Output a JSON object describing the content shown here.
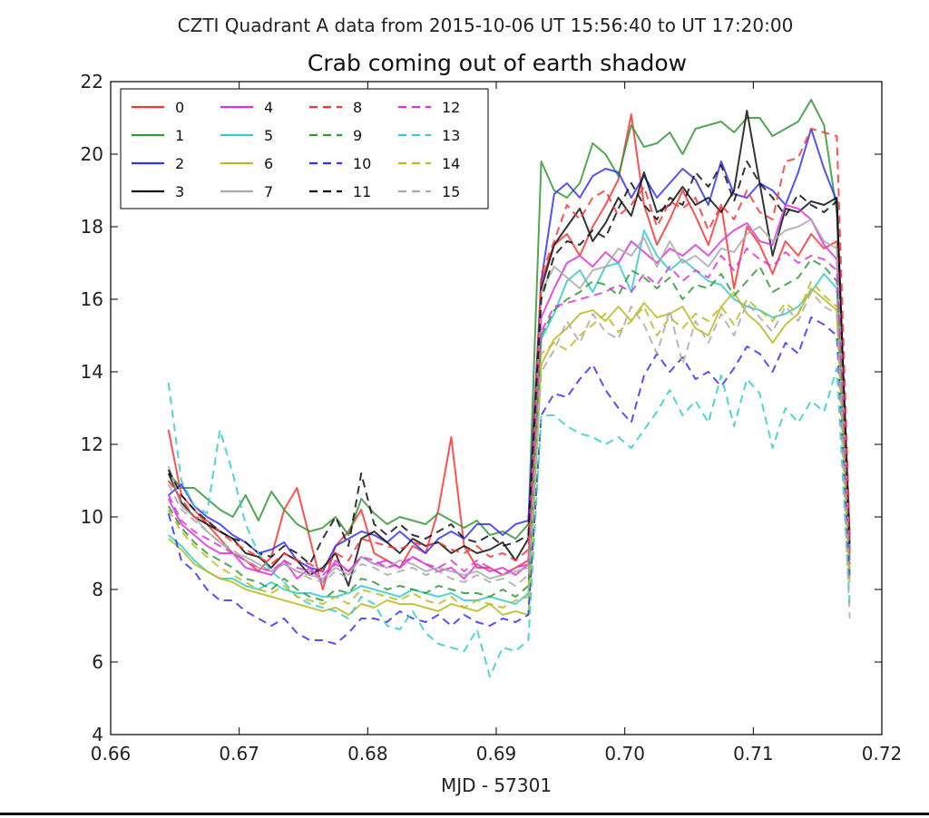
{
  "chart_data": {
    "type": "line",
    "suptitle": "CZTI Quadrant A data from 2015-10-06 UT 15:56:40 to UT 17:20:00",
    "title": "Crab coming out of earth shadow",
    "xlabel": "MJD - 57301",
    "ylabel": "",
    "xlim": [
      0.66,
      0.72
    ],
    "ylim": [
      4,
      22
    ],
    "xticks": [
      "0.66",
      "0.67",
      "0.68",
      "0.69",
      "0.70",
      "0.71",
      "0.72"
    ],
    "yticks": [
      "4",
      "6",
      "8",
      "10",
      "12",
      "14",
      "16",
      "18",
      "20",
      "22"
    ],
    "grid": false,
    "legend": {
      "placement": "top-left",
      "columns": 4
    },
    "x": [
      0.6645,
      0.6655,
      0.6665,
      0.6675,
      0.6685,
      0.6695,
      0.6705,
      0.6715,
      0.6725,
      0.6735,
      0.6745,
      0.6755,
      0.6765,
      0.6775,
      0.6785,
      0.6795,
      0.6805,
      0.6815,
      0.6825,
      0.6835,
      0.6845,
      0.6855,
      0.6865,
      0.6875,
      0.6885,
      0.6895,
      0.6905,
      0.6915,
      0.6925,
      0.6935,
      0.6945,
      0.6955,
      0.6965,
      0.6975,
      0.6985,
      0.6995,
      0.7005,
      0.7015,
      0.7025,
      0.7035,
      0.7045,
      0.7055,
      0.7065,
      0.7075,
      0.7085,
      0.7095,
      0.7105,
      0.7115,
      0.7125,
      0.7135,
      0.7145,
      0.7155,
      0.7165,
      0.7175
    ],
    "series": [
      {
        "name": "0",
        "color": "#ff3333",
        "style": "solid",
        "values": [
          12.4,
          10.6,
          10.2,
          9.8,
          9.4,
          9.0,
          8.8,
          8.5,
          8.9,
          10.2,
          10.8,
          9.4,
          8.0,
          9.2,
          9.6,
          10.2,
          9.0,
          8.8,
          8.6,
          9.2,
          9.0,
          10.2,
          12.2,
          9.2,
          8.6,
          8.6,
          8.4,
          8.6,
          8.8,
          16.5,
          17.5,
          17.8,
          17.2,
          18.0,
          18.6,
          19.3,
          21.1,
          18.6,
          17.5,
          18.2,
          19.0,
          18.3,
          17.5,
          18.6,
          16.3,
          18.0,
          17.5,
          16.7,
          17.6,
          17.2,
          17.8,
          17.4,
          17.6,
          8.5
        ]
      },
      {
        "name": "1",
        "color": "#339933",
        "style": "solid",
        "values": [
          11.2,
          10.8,
          10.8,
          10.5,
          10.2,
          10.0,
          10.6,
          9.9,
          10.7,
          10.2,
          9.8,
          9.6,
          9.7,
          10.0,
          9.5,
          10.5,
          10.1,
          9.8,
          10.0,
          9.9,
          9.8,
          10.1,
          9.9,
          9.7,
          9.9,
          9.5,
          9.6,
          9.4,
          9.8,
          19.8,
          19.0,
          18.8,
          19.2,
          20.3,
          20.0,
          19.4,
          20.8,
          20.2,
          20.3,
          20.6,
          20.0,
          20.7,
          20.8,
          20.9,
          20.6,
          21.0,
          21.0,
          20.5,
          20.7,
          20.9,
          21.5,
          20.8,
          18.4,
          9.5
        ]
      },
      {
        "name": "2",
        "color": "#3333ff",
        "style": "solid",
        "values": [
          10.6,
          10.9,
          10.3,
          10.0,
          9.8,
          9.5,
          9.3,
          9.0,
          9.1,
          9.3,
          8.8,
          8.6,
          8.5,
          9.2,
          9.4,
          9.6,
          9.5,
          9.3,
          9.6,
          9.3,
          9.0,
          9.4,
          9.6,
          9.4,
          9.8,
          9.8,
          9.5,
          9.8,
          9.9,
          16.5,
          18.9,
          19.2,
          18.8,
          19.4,
          19.6,
          19.5,
          18.8,
          19.4,
          18.8,
          19.2,
          19.6,
          19.3,
          18.6,
          19.8,
          18.9,
          18.8,
          19.2,
          19.0,
          18.6,
          19.5,
          20.7,
          19.6,
          18.7,
          9.2
        ]
      },
      {
        "name": "3",
        "color": "#111111",
        "style": "solid",
        "values": [
          11.2,
          10.4,
          10.0,
          9.8,
          9.6,
          9.4,
          9.0,
          8.9,
          8.6,
          9.0,
          8.8,
          8.4,
          8.6,
          9.0,
          8.1,
          9.4,
          9.6,
          9.3,
          9.0,
          9.4,
          9.2,
          9.3,
          9.0,
          9.2,
          9.0,
          9.1,
          9.3,
          8.8,
          9.4,
          16.3,
          17.5,
          18.0,
          18.5,
          17.6,
          18.1,
          18.8,
          18.3,
          19.5,
          18.4,
          18.6,
          19.1,
          18.6,
          18.8,
          18.4,
          19.0,
          21.2,
          19.2,
          17.2,
          18.5,
          18.4,
          18.7,
          18.6,
          18.8,
          9.0
        ]
      },
      {
        "name": "4",
        "color": "#dd33dd",
        "style": "solid",
        "values": [
          10.5,
          9.8,
          9.5,
          9.2,
          9.0,
          9.0,
          8.6,
          8.5,
          8.4,
          8.8,
          8.3,
          8.6,
          8.2,
          8.8,
          8.5,
          8.9,
          8.7,
          8.8,
          8.6,
          8.9,
          8.7,
          8.5,
          8.6,
          8.3,
          8.7,
          8.5,
          8.6,
          8.4,
          8.7,
          15.5,
          16.3,
          17.0,
          17.2,
          16.9,
          17.3,
          17.0,
          17.6,
          17.3,
          17.0,
          17.4,
          17.2,
          17.5,
          17.2,
          17.6,
          17.9,
          18.1,
          17.6,
          17.5,
          18.6,
          18.5,
          18.2,
          17.5,
          17.1,
          8.8
        ]
      },
      {
        "name": "5",
        "color": "#33cccc",
        "style": "solid",
        "values": [
          9.5,
          9.2,
          8.8,
          8.5,
          8.3,
          8.3,
          8.1,
          8.0,
          8.2,
          8.0,
          7.9,
          7.9,
          7.8,
          7.8,
          7.9,
          8.1,
          8.0,
          7.9,
          7.8,
          8.0,
          7.9,
          7.8,
          7.9,
          7.7,
          7.7,
          7.8,
          7.7,
          7.6,
          7.9,
          14.9,
          15.6,
          16.5,
          16.8,
          16.2,
          16.9,
          17.0,
          16.2,
          17.9,
          17.2,
          16.8,
          17.1,
          16.8,
          16.5,
          16.4,
          16.0,
          15.8,
          15.7,
          15.5,
          15.6,
          15.8,
          16.2,
          16.7,
          16.3,
          8.4
        ]
      },
      {
        "name": "6",
        "color": "#bbbb22",
        "style": "solid",
        "values": [
          9.4,
          9.1,
          8.7,
          8.5,
          8.3,
          8.2,
          8.0,
          7.9,
          7.8,
          7.7,
          7.6,
          7.5,
          7.4,
          7.5,
          7.3,
          7.6,
          7.5,
          7.7,
          7.6,
          7.6,
          7.5,
          7.4,
          7.6,
          7.5,
          7.4,
          7.6,
          7.3,
          7.4,
          7.3,
          14.2,
          14.9,
          15.2,
          15.6,
          15.7,
          15.4,
          15.8,
          15.4,
          15.9,
          15.5,
          15.6,
          15.8,
          15.2,
          15.0,
          15.8,
          16.2,
          15.6,
          15.3,
          14.8,
          15.3,
          15.6,
          16.3,
          16.0,
          15.7,
          8.2
        ]
      },
      {
        "name": "7",
        "color": "#aaaaaa",
        "style": "solid",
        "values": [
          11.4,
          10.3,
          10.0,
          9.6,
          9.3,
          9.0,
          8.9,
          8.7,
          8.5,
          8.7,
          8.5,
          8.4,
          8.3,
          8.6,
          8.4,
          8.9,
          8.7,
          8.6,
          8.8,
          8.7,
          8.5,
          8.6,
          8.5,
          8.4,
          8.5,
          8.3,
          8.4,
          8.5,
          8.6,
          16.2,
          16.9,
          16.6,
          16.3,
          16.8,
          16.9,
          17.4,
          17.2,
          17.7,
          16.9,
          17.6,
          17.0,
          17.2,
          16.9,
          17.4,
          17.3,
          17.8,
          18.0,
          17.6,
          17.9,
          18.0,
          18.2,
          17.6,
          17.4,
          9.0
        ]
      },
      {
        "name": "8",
        "color": "#ff3333",
        "style": "dashed",
        "values": [
          11.0,
          10.5,
          10.0,
          9.9,
          9.6,
          9.3,
          9.1,
          8.9,
          8.7,
          9.0,
          8.8,
          8.7,
          8.5,
          9.0,
          8.8,
          9.4,
          9.3,
          9.2,
          9.1,
          9.3,
          9.2,
          9.3,
          9.1,
          9.0,
          9.2,
          8.9,
          9.0,
          8.8,
          9.1,
          16.7,
          17.6,
          18.6,
          18.2,
          18.8,
          19.0,
          18.3,
          18.6,
          19.1,
          18.0,
          18.7,
          18.5,
          18.8,
          17.9,
          18.6,
          18.2,
          19.0,
          18.4,
          18.2,
          19.8,
          19.9,
          20.7,
          20.6,
          20.5,
          9.5
        ]
      },
      {
        "name": "9",
        "color": "#339933",
        "style": "dashed",
        "values": [
          10.3,
          9.7,
          9.3,
          9.0,
          8.8,
          8.6,
          8.3,
          8.2,
          8.0,
          8.3,
          8.0,
          7.8,
          7.7,
          8.0,
          7.9,
          8.3,
          8.2,
          8.0,
          8.1,
          8.0,
          7.9,
          8.1,
          8.0,
          7.9,
          7.9,
          7.8,
          8.0,
          7.8,
          8.1,
          15.0,
          15.7,
          16.0,
          16.2,
          16.5,
          16.4,
          16.1,
          16.8,
          16.6,
          16.3,
          16.6,
          16.0,
          16.4,
          16.3,
          16.7,
          16.1,
          16.5,
          16.9,
          16.2,
          16.4,
          16.6,
          17.1,
          16.9,
          16.5,
          8.7
        ]
      },
      {
        "name": "10",
        "color": "#3333ff",
        "style": "dashed",
        "values": [
          10.1,
          8.8,
          8.5,
          8.0,
          7.7,
          7.7,
          7.4,
          7.2,
          7.0,
          7.2,
          6.8,
          6.6,
          6.6,
          6.5,
          6.8,
          7.2,
          7.2,
          7.1,
          7.4,
          7.2,
          7.1,
          7.3,
          7.0,
          7.3,
          7.1,
          7.0,
          7.2,
          7.1,
          7.3,
          12.8,
          13.4,
          13.3,
          13.8,
          14.2,
          13.5,
          13.0,
          12.6,
          13.9,
          14.5,
          14.0,
          14.4,
          13.8,
          14.0,
          13.6,
          14.1,
          14.7,
          14.5,
          14.0,
          14.8,
          14.5,
          15.5,
          15.3,
          15.0,
          8.2
        ]
      },
      {
        "name": "11",
        "color": "#111111",
        "style": "dashed",
        "values": [
          11.3,
          10.6,
          10.2,
          9.9,
          9.6,
          9.4,
          9.3,
          9.0,
          8.9,
          9.2,
          9.0,
          8.7,
          9.4,
          10.0,
          9.2,
          11.2,
          9.8,
          9.5,
          9.8,
          9.5,
          9.4,
          9.6,
          9.8,
          9.4,
          9.3,
          9.5,
          9.2,
          9.3,
          9.5,
          16.0,
          17.2,
          17.6,
          17.5,
          17.9,
          17.7,
          18.5,
          19.2,
          18.6,
          18.2,
          18.8,
          18.6,
          19.5,
          19.1,
          19.7,
          18.7,
          19.8,
          19.2,
          18.8,
          18.3,
          18.9,
          18.6,
          18.4,
          18.7,
          9.1
        ]
      },
      {
        "name": "12",
        "color": "#dd33dd",
        "style": "dashed",
        "values": [
          10.6,
          9.9,
          9.6,
          9.4,
          9.2,
          9.0,
          8.8,
          8.6,
          8.5,
          8.8,
          8.6,
          8.5,
          8.4,
          8.7,
          8.5,
          8.9,
          8.8,
          8.6,
          8.7,
          8.9,
          8.7,
          8.6,
          8.8,
          8.5,
          8.8,
          8.6,
          8.4,
          8.6,
          8.7,
          15.1,
          15.8,
          15.9,
          16.0,
          16.1,
          16.2,
          16.4,
          16.2,
          16.7,
          16.4,
          16.9,
          16.5,
          16.8,
          16.6,
          17.2,
          16.8,
          17.4,
          17.1,
          16.9,
          17.3,
          17.0,
          17.2,
          17.1,
          16.8,
          8.9
        ]
      },
      {
        "name": "13",
        "color": "#33cccc",
        "style": "dashed",
        "values": [
          13.7,
          11.0,
          10.3,
          10.1,
          12.4,
          11.2,
          9.8,
          9.0,
          8.5,
          8.2,
          7.8,
          7.6,
          7.5,
          7.4,
          7.2,
          7.8,
          7.6,
          7.0,
          6.9,
          7.4,
          6.8,
          6.5,
          6.4,
          6.3,
          6.9,
          5.6,
          6.4,
          6.3,
          6.6,
          12.8,
          12.8,
          12.5,
          12.3,
          12.2,
          12.0,
          12.2,
          11.9,
          12.4,
          12.9,
          13.5,
          12.8,
          13.2,
          12.6,
          13.9,
          12.5,
          13.8,
          13.4,
          11.9,
          13.0,
          12.6,
          13.2,
          12.9,
          14.1,
          7.6
        ]
      },
      {
        "name": "14",
        "color": "#bbbb22",
        "style": "dashed",
        "values": [
          10.2,
          9.6,
          9.2,
          8.9,
          8.6,
          8.4,
          8.2,
          8.0,
          7.9,
          8.1,
          7.8,
          7.7,
          7.6,
          7.8,
          7.6,
          8.0,
          7.9,
          7.8,
          7.7,
          7.9,
          7.7,
          7.6,
          7.8,
          7.5,
          7.7,
          7.6,
          7.5,
          7.7,
          7.8,
          14.5,
          14.8,
          14.6,
          15.0,
          15.3,
          15.6,
          15.1,
          15.4,
          15.8,
          15.0,
          15.5,
          15.2,
          15.6,
          15.4,
          15.8,
          15.3,
          16.0,
          15.7,
          15.4,
          15.9,
          15.6,
          16.5,
          16.1,
          15.8,
          8.3
        ]
      },
      {
        "name": "15",
        "color": "#aaaaaa",
        "style": "dashed",
        "values": [
          10.9,
          10.2,
          9.9,
          9.6,
          9.3,
          9.1,
          8.8,
          8.6,
          8.5,
          8.7,
          8.5,
          8.3,
          8.2,
          8.5,
          8.3,
          8.7,
          8.6,
          8.4,
          8.5,
          8.6,
          8.4,
          8.5,
          8.3,
          8.2,
          8.4,
          8.2,
          8.3,
          8.1,
          8.4,
          14.0,
          14.6,
          15.4,
          14.8,
          15.6,
          15.1,
          14.9,
          15.8,
          15.3,
          14.5,
          15.7,
          14.2,
          15.4,
          14.8,
          15.6,
          15.0,
          15.9,
          15.5,
          15.1,
          15.8,
          15.4,
          16.2,
          15.8,
          15.6,
          7.2
        ]
      }
    ]
  }
}
